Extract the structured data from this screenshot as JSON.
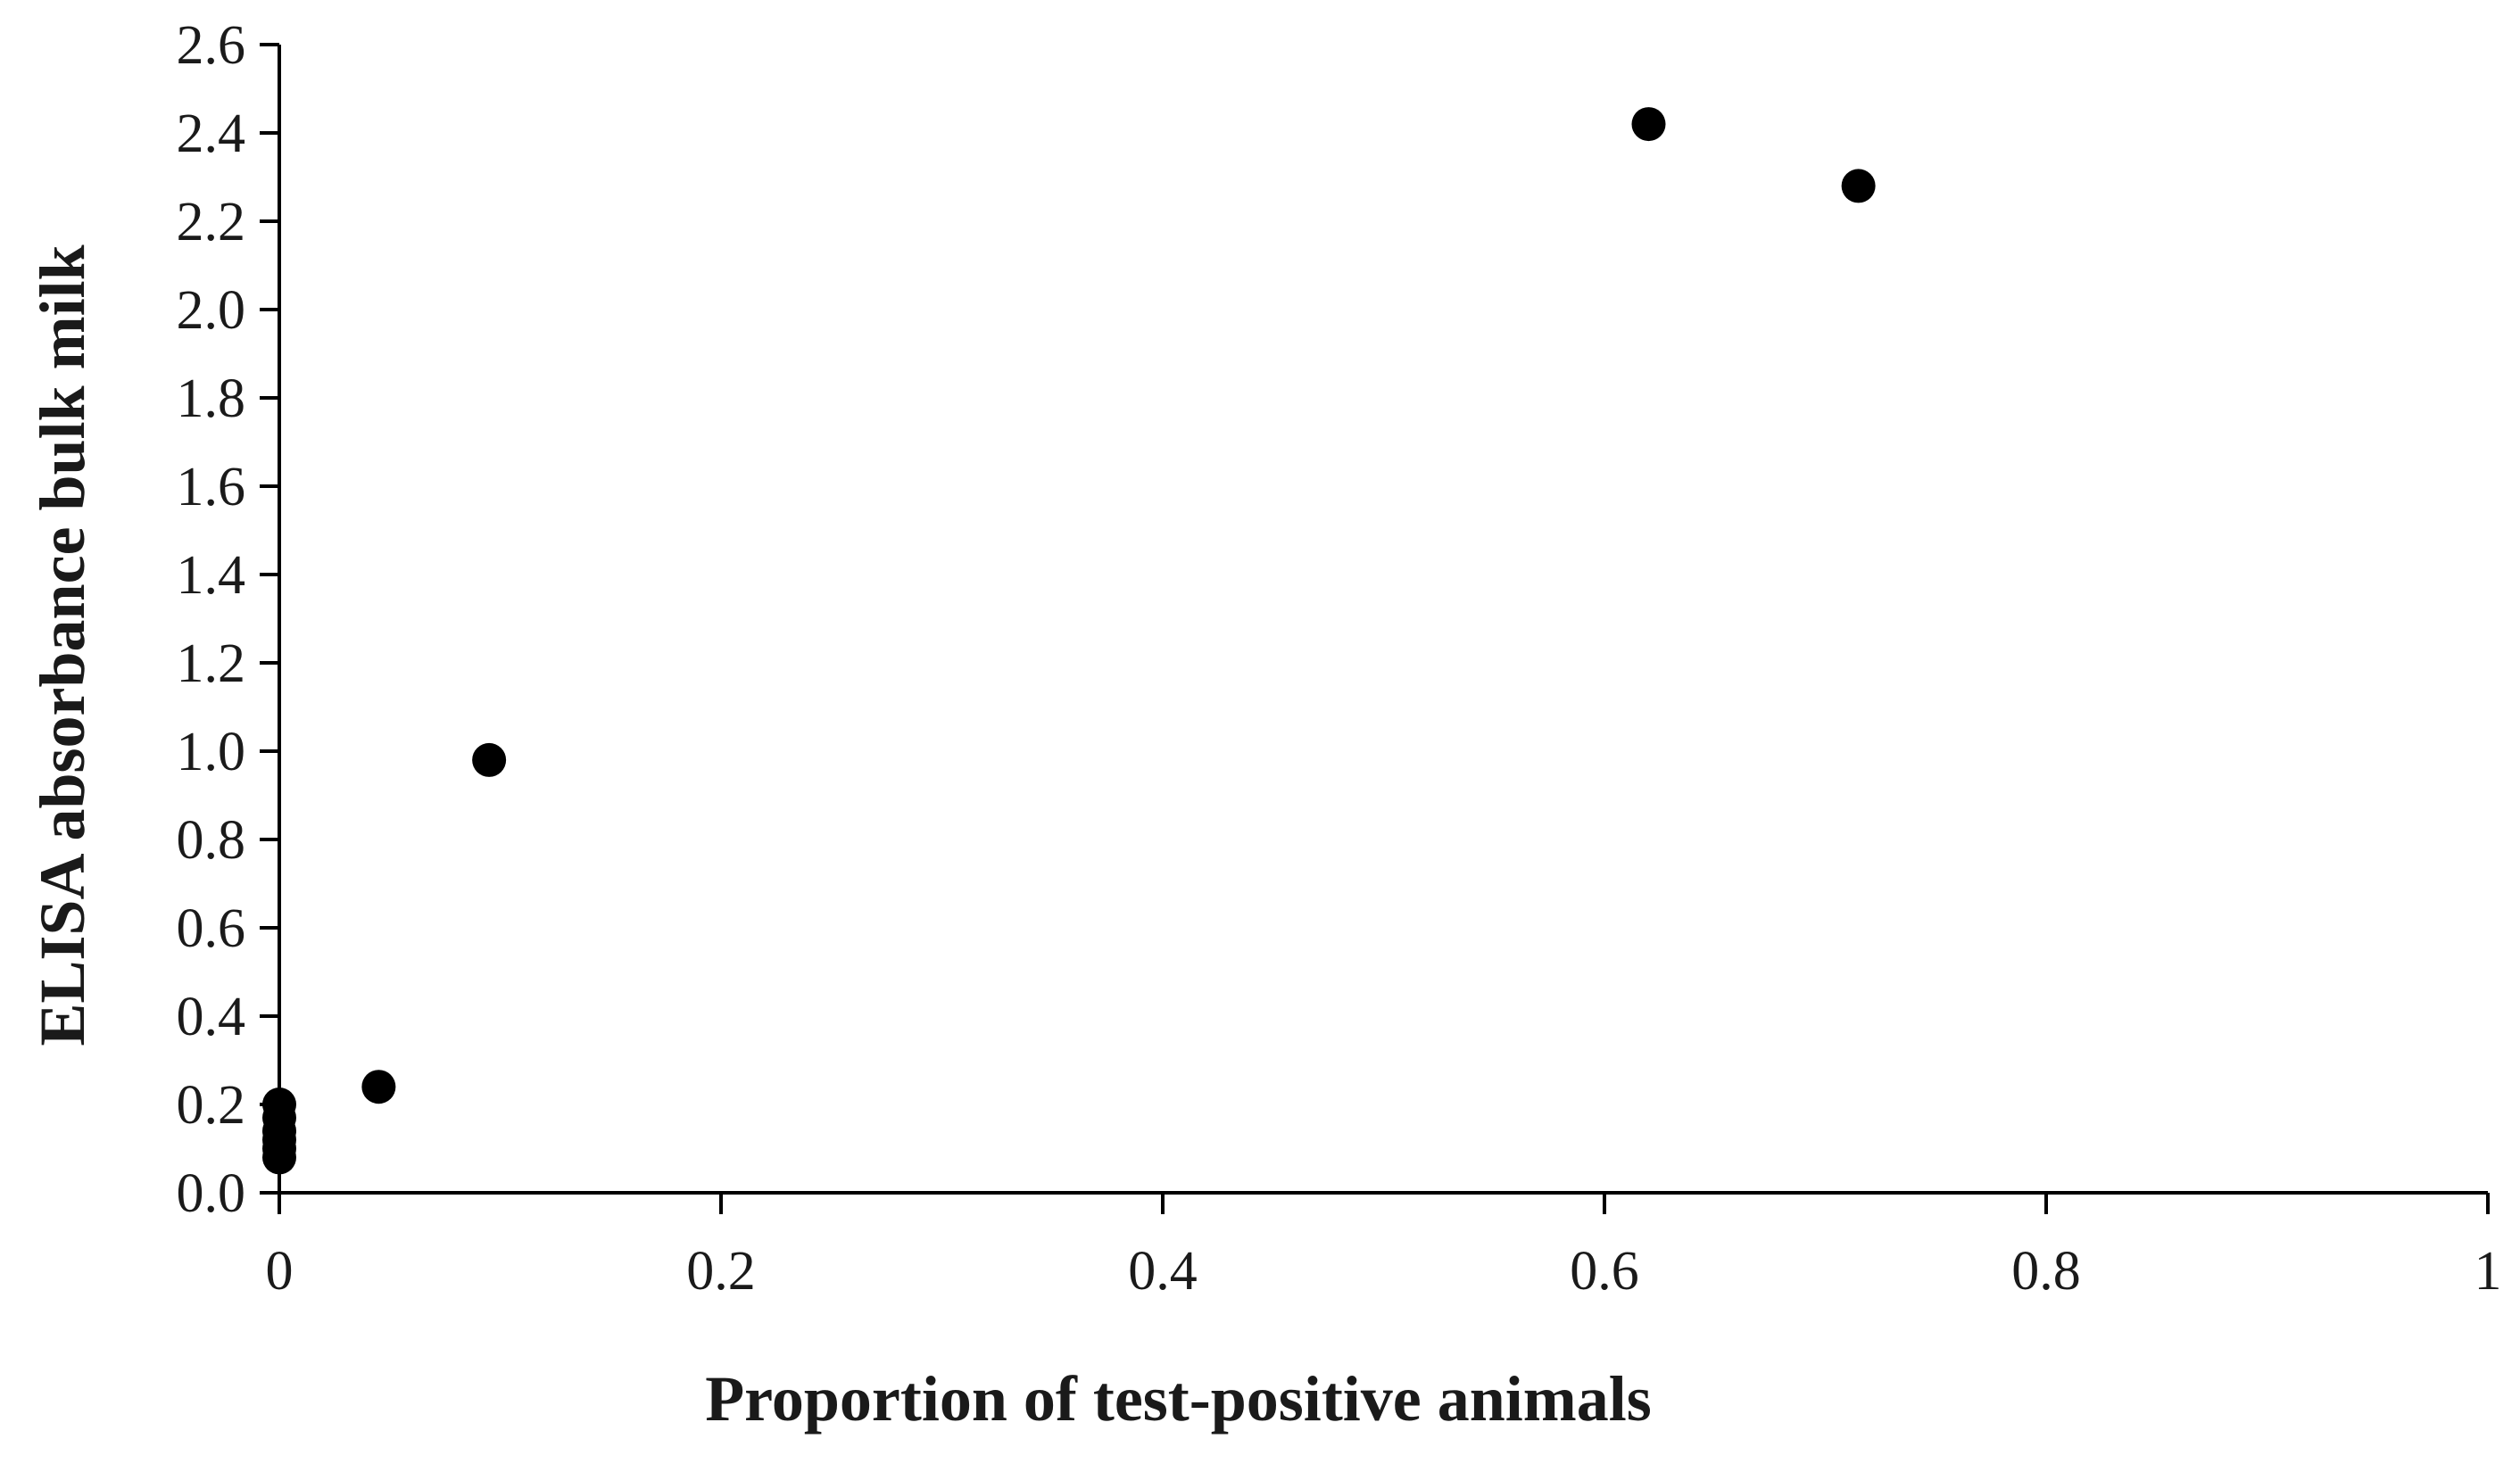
{
  "chart_data": {
    "type": "scatter",
    "title": "",
    "xlabel": "Proportion of test-positive animals",
    "ylabel": "ELISA absorbance bulk milk",
    "xlim": [
      0,
      1
    ],
    "ylim": [
      0,
      2.6
    ],
    "xticks": [
      "0",
      "0.2",
      "0.4",
      "0.6",
      "0.8",
      "1"
    ],
    "xtick_values": [
      0,
      0.2,
      0.4,
      0.6,
      0.8,
      1
    ],
    "yticks": [
      "0.0",
      "0.2",
      "0.4",
      "0.6",
      "0.8",
      "1.0",
      "1.2",
      "1.4",
      "1.6",
      "1.8",
      "2.0",
      "2.2",
      "2.4",
      "2.6"
    ],
    "ytick_values": [
      0,
      0.2,
      0.4,
      0.6,
      0.8,
      1.0,
      1.2,
      1.4,
      1.6,
      1.8,
      2.0,
      2.2,
      2.4,
      2.6
    ],
    "grid": false,
    "legend": "none",
    "marker_color": "#000000",
    "series": [
      {
        "points": [
          {
            "x": 0,
            "y": 0.08
          },
          {
            "x": 0,
            "y": 0.1
          },
          {
            "x": 0,
            "y": 0.12
          },
          {
            "x": 0,
            "y": 0.14
          },
          {
            "x": 0,
            "y": 0.17
          },
          {
            "x": 0,
            "y": 0.2
          },
          {
            "x": 0.045,
            "y": 0.24
          },
          {
            "x": 0.095,
            "y": 0.98
          },
          {
            "x": 0.62,
            "y": 2.42
          },
          {
            "x": 0.715,
            "y": 2.28
          }
        ]
      }
    ]
  }
}
